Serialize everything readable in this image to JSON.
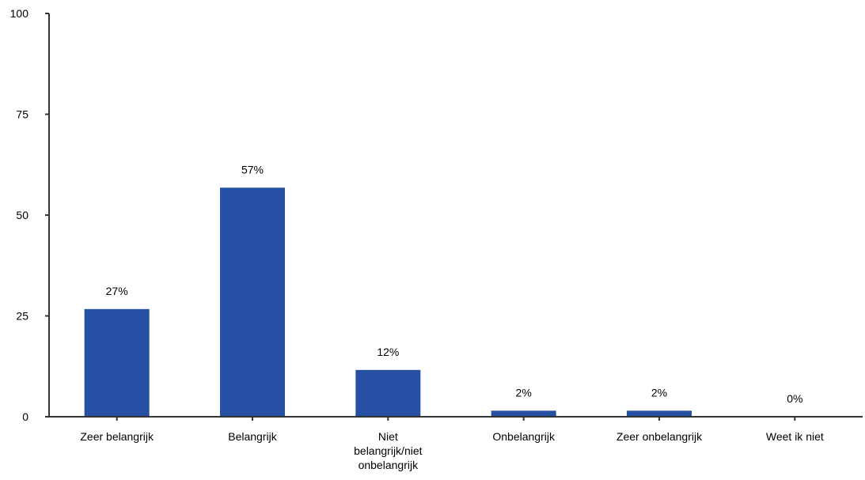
{
  "chart_data": {
    "type": "bar",
    "categories": [
      [
        "Zeer belangrijk"
      ],
      [
        "Belangrijk"
      ],
      [
        "Niet",
        "belangrijk/niet",
        "onbelangrijk"
      ],
      [
        "Onbelangrijk"
      ],
      [
        "Zeer onbelangrijk"
      ],
      [
        "Weet ik niet"
      ]
    ],
    "values": [
      26.7,
      56.8,
      11.6,
      1.5,
      1.5,
      0
    ],
    "data_labels": [
      "27%",
      "57%",
      "12%",
      "2%",
      "2%",
      "0%"
    ],
    "yticks": [
      "0",
      "25",
      "50",
      "75",
      "100"
    ],
    "ylim": [
      0,
      100
    ],
    "title": "",
    "xlabel": "",
    "ylabel": "",
    "grid": false,
    "colors": {
      "bar": "#2550A3",
      "axis": "#333333"
    }
  }
}
